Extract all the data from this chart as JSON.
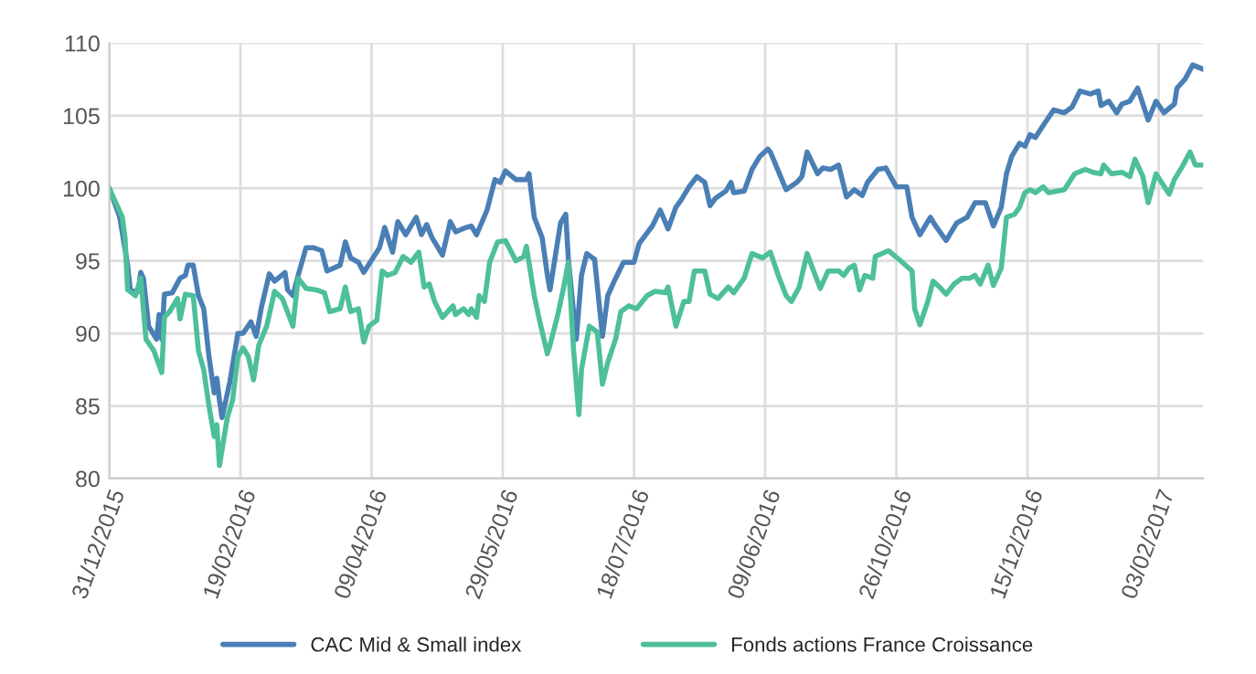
{
  "chart_data": {
    "type": "line",
    "xlim": [
      "2015-12-31",
      "2017-02-20"
    ],
    "ylim": [
      80,
      110
    ],
    "yticks": [
      80,
      85,
      90,
      95,
      100,
      105,
      110
    ],
    "xticks": [
      {
        "value": "2015-12-31",
        "label": "31/12/2015"
      },
      {
        "value": "2016-02-19",
        "label": "19/02/2016"
      },
      {
        "value": "2016-04-09",
        "label": "09/04/2016"
      },
      {
        "value": "2016-05-29",
        "label": "29/05/2016"
      },
      {
        "value": "2016-07-18",
        "label": "18/07/2016"
      },
      {
        "value": "2016-09-06",
        "label": "09/06/2016"
      },
      {
        "value": "2016-10-26",
        "label": "26/10/2016"
      },
      {
        "value": "2016-12-15",
        "label": "15/12/2016"
      },
      {
        "value": "2017-02-03",
        "label": "03/02/2017"
      }
    ],
    "grid": true,
    "legend": "bottom",
    "marker": "none",
    "line_style": "solid",
    "series": [
      {
        "name": "CAC Mid & Small index",
        "color": "#4a7fb5",
        "x": [
          "2015-12-31",
          "2016-01-04",
          "2016-01-07",
          "2016-01-08",
          "2016-01-11",
          "2016-01-12",
          "2016-01-13",
          "2016-01-15",
          "2016-01-18",
          "2016-01-19",
          "2016-01-20",
          "2016-01-21",
          "2016-01-24",
          "2016-01-27",
          "2016-01-29",
          "2016-01-30",
          "2016-02-01",
          "2016-02-03",
          "2016-02-05",
          "2016-02-07",
          "2016-02-09",
          "2016-02-10",
          "2016-02-11",
          "2016-02-12",
          "2016-02-15",
          "2016-02-18",
          "2016-02-20",
          "2016-02-23",
          "2016-02-25",
          "2016-02-27",
          "2016-03-01",
          "2016-03-03",
          "2016-03-07",
          "2016-03-08",
          "2016-03-10",
          "2016-03-12",
          "2016-03-15",
          "2016-03-18",
          "2016-03-21",
          "2016-03-23",
          "2016-03-28",
          "2016-03-30",
          "2016-04-01",
          "2016-04-04",
          "2016-04-06",
          "2016-04-12",
          "2016-04-14",
          "2016-04-17",
          "2016-04-19",
          "2016-04-22",
          "2016-04-26",
          "2016-04-28",
          "2016-04-30",
          "2016-05-02",
          "2016-05-06",
          "2016-05-09",
          "2016-05-11",
          "2016-05-15",
          "2016-05-17",
          "2016-05-19",
          "2016-05-23",
          "2016-05-26",
          "2016-05-28",
          "2016-05-30",
          "2016-06-03",
          "2016-06-07",
          "2016-06-08",
          "2016-06-10",
          "2016-06-13",
          "2016-06-15",
          "2016-06-16",
          "2016-06-18",
          "2016-06-20",
          "2016-06-22",
          "2016-06-23",
          "2016-06-26",
          "2016-06-28",
          "2016-06-30",
          "2016-07-03",
          "2016-07-06",
          "2016-07-08",
          "2016-07-11",
          "2016-07-14",
          "2016-07-18",
          "2016-07-20",
          "2016-07-25",
          "2016-07-28",
          "2016-07-31",
          "2016-08-03",
          "2016-08-05",
          "2016-08-08",
          "2016-08-11",
          "2016-08-14",
          "2016-08-16",
          "2016-08-18",
          "2016-08-22",
          "2016-08-24",
          "2016-08-25",
          "2016-08-29",
          "2016-09-01",
          "2016-09-04",
          "2016-09-07",
          "2016-09-08",
          "2016-09-11",
          "2016-09-14",
          "2016-09-18",
          "2016-09-20",
          "2016-09-22",
          "2016-09-26",
          "2016-09-28",
          "2016-10-01",
          "2016-10-04",
          "2016-10-07",
          "2016-10-10",
          "2016-10-13",
          "2016-10-15",
          "2016-10-19",
          "2016-10-22",
          "2016-10-26",
          "2016-10-30",
          "2016-11-01",
          "2016-11-04",
          "2016-11-08",
          "2016-11-10",
          "2016-11-14",
          "2016-11-18",
          "2016-11-22",
          "2016-11-25",
          "2016-11-29",
          "2016-12-02",
          "2016-12-05",
          "2016-12-07",
          "2016-12-09",
          "2016-12-12",
          "2016-12-14",
          "2016-12-16",
          "2016-12-18",
          "2016-12-22",
          "2016-12-25",
          "2016-12-29",
          "2017-01-01",
          "2017-01-04",
          "2017-01-08",
          "2017-01-11",
          "2017-01-12",
          "2017-01-15",
          "2017-01-18",
          "2017-01-20",
          "2017-01-23",
          "2017-01-26",
          "2017-01-28",
          "2017-01-30",
          "2017-02-02",
          "2017-02-05",
          "2017-02-09",
          "2017-02-10",
          "2017-02-13",
          "2017-02-16",
          "2017-02-20"
        ],
        "values": [
          100,
          98.0,
          94.7,
          93.0,
          92.9,
          94.2,
          93.8,
          90.5,
          89.6,
          91.3,
          89.6,
          92.7,
          92.8,
          93.8,
          94.0,
          94.7,
          94.7,
          92.6,
          91.7,
          88.4,
          85.9,
          86.9,
          85.4,
          84.2,
          86.7,
          90.0,
          90.0,
          90.8,
          89.8,
          91.8,
          94.1,
          93.6,
          94.2,
          93.0,
          92.6,
          94.0,
          95.9,
          95.9,
          95.7,
          94.3,
          94.7,
          96.3,
          95.2,
          94.9,
          94.2,
          95.9,
          97.3,
          95.6,
          97.7,
          96.8,
          98.0,
          96.8,
          97.5,
          96.6,
          95.4,
          97.7,
          97.0,
          97.3,
          97.4,
          96.8,
          98.5,
          100.6,
          100.4,
          101.2,
          100.6,
          100.6,
          101.0,
          98.0,
          96.6,
          94.0,
          93.0,
          95.3,
          97.6,
          98.2,
          95.1,
          89.6,
          94.0,
          95.5,
          95.1,
          89.8,
          92.6,
          93.8,
          94.9,
          94.9,
          96.2,
          97.4,
          98.5,
          97.2,
          98.7,
          99.2,
          100.1,
          100.8,
          100.4,
          98.8,
          99.3,
          99.8,
          100.4,
          99.7,
          99.8,
          101.3,
          102.2,
          102.7,
          102.5,
          101.2,
          99.9,
          100.4,
          100.8,
          102.5,
          101.0,
          101.4,
          101.3,
          101.6,
          99.4,
          99.9,
          99.5,
          100.4,
          101.3,
          101.4,
          100.1,
          100.1,
          98.0,
          96.8,
          98.0,
          97.4,
          96.4,
          97.6,
          98.0,
          99.0,
          99.0,
          97.4,
          98.7,
          101.0,
          102.2,
          103.1,
          102.9,
          103.7,
          103.5,
          104.6,
          105.4,
          105.2,
          105.6,
          106.7,
          106.5,
          106.7,
          105.7,
          106.0,
          105.2,
          105.8,
          106.0,
          106.9,
          105.8,
          104.7,
          106.0,
          105.2,
          105.8,
          106.9,
          107.5,
          108.5,
          108.2
        ]
      },
      {
        "name": "Fonds actions France Croissance",
        "color": "#4dbf9b",
        "x": [
          "2015-12-31",
          "2016-01-05",
          "2016-01-06",
          "2016-01-07",
          "2016-01-10",
          "2016-01-12",
          "2016-01-14",
          "2016-01-17",
          "2016-01-20",
          "2016-01-21",
          "2016-01-23",
          "2016-01-26",
          "2016-01-27",
          "2016-01-29",
          "2016-02-01",
          "2016-02-03",
          "2016-02-05",
          "2016-02-07",
          "2016-02-09",
          "2016-02-10",
          "2016-02-11",
          "2016-02-14",
          "2016-02-16",
          "2016-02-18",
          "2016-02-20",
          "2016-02-22",
          "2016-02-24",
          "2016-02-26",
          "2016-02-29",
          "2016-03-03",
          "2016-03-06",
          "2016-03-10",
          "2016-03-12",
          "2016-03-15",
          "2016-03-19",
          "2016-03-22",
          "2016-03-24",
          "2016-03-28",
          "2016-03-30",
          "2016-04-01",
          "2016-04-04",
          "2016-04-06",
          "2016-04-08",
          "2016-04-11",
          "2016-04-13",
          "2016-04-15",
          "2016-04-18",
          "2016-04-21",
          "2016-04-24",
          "2016-04-27",
          "2016-04-29",
          "2016-05-01",
          "2016-05-03",
          "2016-05-06",
          "2016-05-10",
          "2016-05-11",
          "2016-05-14",
          "2016-05-16",
          "2016-05-17",
          "2016-05-19",
          "2016-05-20",
          "2016-05-22",
          "2016-05-24",
          "2016-05-27",
          "2016-05-30",
          "2016-06-01",
          "2016-06-03",
          "2016-06-06",
          "2016-06-07",
          "2016-06-10",
          "2016-06-12",
          "2016-06-15",
          "2016-06-16",
          "2016-06-19",
          "2016-06-21",
          "2016-06-23",
          "2016-06-25",
          "2016-06-27",
          "2016-06-28",
          "2016-07-01",
          "2016-07-04",
          "2016-07-06",
          "2016-07-08",
          "2016-07-11",
          "2016-07-13",
          "2016-07-16",
          "2016-07-19",
          "2016-07-23",
          "2016-07-26",
          "2016-07-30",
          "2016-07-31",
          "2016-08-03",
          "2016-08-06",
          "2016-08-08",
          "2016-08-10",
          "2016-08-14",
          "2016-08-16",
          "2016-08-19",
          "2016-08-23",
          "2016-08-25",
          "2016-08-29",
          "2016-09-01",
          "2016-09-05",
          "2016-09-08",
          "2016-09-11",
          "2016-09-14",
          "2016-09-16",
          "2016-09-19",
          "2016-09-22",
          "2016-09-27",
          "2016-09-30",
          "2016-10-04",
          "2016-10-06",
          "2016-10-08",
          "2016-10-10",
          "2016-10-12",
          "2016-10-14",
          "2016-10-17",
          "2016-10-18",
          "2016-10-23",
          "2016-10-27",
          "2016-11-01",
          "2016-11-02",
          "2016-11-04",
          "2016-11-07",
          "2016-11-09",
          "2016-11-12",
          "2016-11-14",
          "2016-11-17",
          "2016-11-20",
          "2016-11-23",
          "2016-11-25",
          "2016-11-27",
          "2016-11-30",
          "2016-12-02",
          "2016-12-05",
          "2016-12-07",
          "2016-12-10",
          "2016-12-12",
          "2016-12-14",
          "2016-12-16",
          "2016-12-18",
          "2016-12-21",
          "2016-12-23",
          "2016-12-29",
          "2017-01-02",
          "2017-01-06",
          "2017-01-09",
          "2017-01-12",
          "2017-01-13",
          "2017-01-16",
          "2017-01-20",
          "2017-01-23",
          "2017-01-25",
          "2017-01-28",
          "2017-01-30",
          "2017-02-02",
          "2017-02-07",
          "2017-02-09",
          "2017-02-12",
          "2017-02-15",
          "2017-02-17",
          "2017-02-20"
        ],
        "values": [
          100,
          98.0,
          96.6,
          93.0,
          92.6,
          93.8,
          89.6,
          88.8,
          87.3,
          91.1,
          91.5,
          92.4,
          91.0,
          92.7,
          92.6,
          88.8,
          87.5,
          85.0,
          82.9,
          83.7,
          80.9,
          84.2,
          85.4,
          88.4,
          89.0,
          88.4,
          86.8,
          89.2,
          90.5,
          92.9,
          92.4,
          90.5,
          93.8,
          93.1,
          93.0,
          92.8,
          91.5,
          91.7,
          93.2,
          91.5,
          91.7,
          89.4,
          90.5,
          90.9,
          94.3,
          94.0,
          94.2,
          95.3,
          94.9,
          95.6,
          93.2,
          93.4,
          92.2,
          91.1,
          91.9,
          91.3,
          91.7,
          91.3,
          91.7,
          91.1,
          92.6,
          92.2,
          94.9,
          96.3,
          96.4,
          95.7,
          95.0,
          95.3,
          96.0,
          92.6,
          90.9,
          88.6,
          89.2,
          91.3,
          93.0,
          94.9,
          88.8,
          84.4,
          87.5,
          90.5,
          90.1,
          86.5,
          88.0,
          89.6,
          91.5,
          91.9,
          91.7,
          92.6,
          92.9,
          92.8,
          93.2,
          90.5,
          92.2,
          92.2,
          94.3,
          94.3,
          92.7,
          92.4,
          93.2,
          92.8,
          93.8,
          95.5,
          95.2,
          95.6,
          94.0,
          92.6,
          92.2,
          93.2,
          95.5,
          93.1,
          94.3,
          94.3,
          94.0,
          94.5,
          94.7,
          93.0,
          94.0,
          93.8,
          95.3,
          95.7,
          95.1,
          94.3,
          91.7,
          90.6,
          92.2,
          93.6,
          93.1,
          92.7,
          93.4,
          93.8,
          93.8,
          94.0,
          93.4,
          94.7,
          93.3,
          94.5,
          98.0,
          98.2,
          98.7,
          99.7,
          99.9,
          99.7,
          100.1,
          99.7,
          99.9,
          101.0,
          101.3,
          101.1,
          101.0,
          101.6,
          101.0,
          101.1,
          100.8,
          102.0,
          100.8,
          99.0,
          101.0,
          99.6,
          100.6,
          101.5,
          102.5,
          101.6,
          101.6
        ]
      }
    ]
  }
}
